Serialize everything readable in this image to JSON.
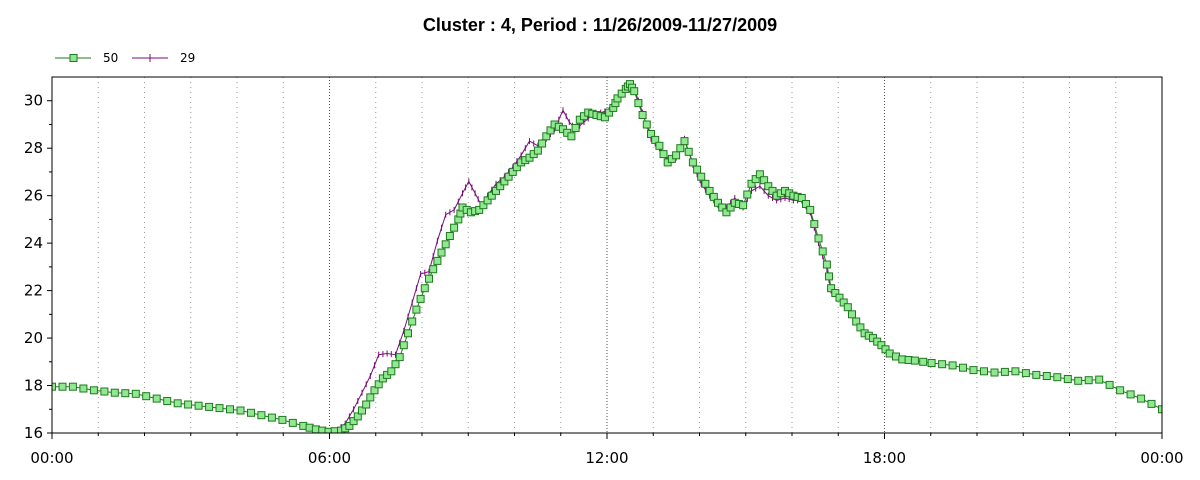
{
  "chart_data": {
    "type": "line",
    "title": "Cluster : 4, Period : 11/26/2009-11/27/2009",
    "xlabel": "",
    "ylabel": "",
    "x_range_hours": [
      0,
      24
    ],
    "ylim": [
      16,
      31
    ],
    "x_tick_labels": [
      "00:00",
      "06:00",
      "12:00",
      "18:00",
      "00:00"
    ],
    "x_tick_hours": [
      0,
      6,
      12,
      18,
      24
    ],
    "y_ticks": [
      16,
      18,
      20,
      22,
      24,
      26,
      28,
      30
    ],
    "legend_position": "top-left",
    "grid": "vertical dotted",
    "series": [
      {
        "name": "50",
        "color": "#1f7a1f",
        "marker_fill": "#90e890",
        "marker": "square",
        "points": [
          [
            0,
            17.95
          ],
          [
            0.5,
            17.95
          ],
          [
            1,
            17.8
          ],
          [
            1.5,
            17.7
          ],
          [
            2,
            17.65
          ],
          [
            2.5,
            17.45
          ],
          [
            3,
            17.25
          ],
          [
            3.5,
            17.15
          ],
          [
            4,
            17.05
          ],
          [
            4.5,
            16.95
          ],
          [
            5,
            16.75
          ],
          [
            5.5,
            16.55
          ],
          [
            6,
            16.3
          ],
          [
            6.3,
            16.15
          ],
          [
            6.6,
            16.05
          ],
          [
            6.9,
            16.1
          ],
          [
            7.1,
            16.3
          ],
          [
            7.3,
            16.7
          ],
          [
            7.5,
            17.2
          ],
          [
            7.7,
            17.8
          ],
          [
            7.9,
            18.3
          ],
          [
            8.1,
            18.6
          ],
          [
            8.3,
            19.2
          ],
          [
            8.5,
            20.2
          ],
          [
            8.7,
            21.2
          ],
          [
            8.9,
            22.1
          ],
          [
            9.1,
            22.9
          ],
          [
            9.3,
            23.6
          ],
          [
            9.5,
            24.3
          ],
          [
            9.7,
            25.0
          ],
          [
            9.8,
            25.5
          ],
          [
            10.0,
            25.3
          ],
          [
            10.2,
            25.4
          ],
          [
            10.4,
            25.8
          ],
          [
            10.6,
            26.2
          ],
          [
            10.8,
            26.6
          ],
          [
            11.0,
            27.0
          ],
          [
            11.2,
            27.4
          ],
          [
            11.4,
            27.6
          ],
          [
            11.6,
            27.9
          ],
          [
            11.8,
            28.5
          ],
          [
            12.0,
            29.0
          ],
          [
            12.2,
            28.8
          ],
          [
            12.4,
            28.5
          ],
          [
            12.6,
            29.2
          ],
          [
            12.8,
            29.5
          ],
          [
            13.0,
            29.4
          ],
          [
            13.2,
            29.3
          ],
          [
            13.4,
            29.7
          ],
          [
            13.5,
            30.1
          ],
          [
            13.7,
            30.5
          ],
          [
            13.8,
            30.7
          ],
          [
            13.9,
            30.4
          ],
          [
            14.1,
            29.4
          ],
          [
            14.3,
            28.6
          ],
          [
            14.5,
            28.1
          ],
          [
            14.7,
            27.4
          ],
          [
            14.9,
            27.7
          ],
          [
            15.1,
            28.3
          ],
          [
            15.3,
            27.4
          ],
          [
            15.5,
            26.8
          ],
          [
            15.7,
            26.2
          ],
          [
            15.9,
            25.7
          ],
          [
            16.1,
            25.3
          ],
          [
            16.3,
            25.7
          ],
          [
            16.5,
            25.6
          ],
          [
            16.7,
            26.5
          ],
          [
            16.9,
            26.9
          ],
          [
            17.1,
            26.4
          ],
          [
            17.3,
            26.0
          ],
          [
            17.5,
            26.2
          ],
          [
            17.7,
            26.0
          ],
          [
            17.9,
            25.9
          ],
          [
            18.1,
            25.4
          ],
          [
            18.3,
            24.2
          ],
          [
            18.5,
            23.1
          ],
          [
            18.6,
            22.1
          ],
          [
            18.8,
            21.7
          ],
          [
            19.0,
            21.3
          ],
          [
            19.2,
            20.7
          ],
          [
            19.4,
            20.2
          ],
          [
            19.6,
            20.0
          ],
          [
            19.8,
            19.7
          ],
          [
            20.0,
            19.35
          ],
          [
            20.3,
            19.1
          ],
          [
            20.6,
            19.05
          ],
          [
            21.0,
            18.95
          ],
          [
            21.5,
            18.85
          ],
          [
            22.0,
            18.65
          ],
          [
            22.5,
            18.55
          ],
          [
            23.0,
            18.6
          ],
          [
            23.5,
            18.45
          ],
          [
            24.0,
            18.35
          ],
          [
            24.5,
            18.2
          ],
          [
            25.0,
            18.25
          ],
          [
            25.5,
            17.8
          ],
          [
            26.0,
            17.45
          ],
          [
            26.5,
            17.0
          ]
        ]
      },
      {
        "name": "29",
        "color": "#7b0c7b",
        "marker": "plus",
        "points": [
          [
            6.8,
            16.1
          ],
          [
            7.0,
            16.4
          ],
          [
            7.2,
            17.0
          ],
          [
            7.4,
            17.7
          ],
          [
            7.6,
            18.4
          ],
          [
            7.8,
            19.3
          ],
          [
            8.0,
            19.35
          ],
          [
            8.2,
            19.3
          ],
          [
            8.4,
            20.3
          ],
          [
            8.6,
            21.5
          ],
          [
            8.8,
            22.7
          ],
          [
            9.0,
            22.8
          ],
          [
            9.2,
            24.1
          ],
          [
            9.4,
            25.2
          ],
          [
            9.6,
            25.4
          ],
          [
            9.8,
            26.1
          ],
          [
            9.95,
            26.6
          ],
          [
            10.1,
            26.1
          ],
          [
            10.25,
            25.6
          ],
          [
            10.4,
            26.0
          ],
          [
            10.6,
            26.5
          ],
          [
            10.8,
            26.8
          ],
          [
            11.0,
            27.2
          ],
          [
            11.2,
            27.7
          ],
          [
            11.4,
            28.3
          ],
          [
            11.6,
            28.1
          ],
          [
            11.8,
            28.4
          ],
          [
            12.0,
            28.8
          ],
          [
            12.2,
            29.6
          ],
          [
            12.35,
            29.1
          ],
          [
            12.5,
            28.8
          ],
          [
            12.7,
            29.1
          ],
          [
            12.9,
            29.4
          ],
          [
            13.1,
            29.5
          ],
          [
            13.3,
            29.6
          ],
          [
            13.5,
            30.0
          ],
          [
            13.7,
            30.6
          ],
          [
            13.9,
            30.5
          ],
          [
            14.1,
            29.5
          ],
          [
            14.3,
            28.4
          ],
          [
            14.5,
            28.0
          ],
          [
            14.7,
            27.5
          ],
          [
            14.9,
            27.6
          ],
          [
            15.1,
            28.4
          ],
          [
            15.3,
            27.3
          ],
          [
            15.5,
            26.5
          ],
          [
            15.7,
            26.0
          ],
          [
            15.9,
            25.6
          ],
          [
            16.1,
            25.5
          ],
          [
            16.3,
            25.9
          ],
          [
            16.5,
            25.5
          ],
          [
            16.7,
            26.2
          ],
          [
            16.9,
            26.4
          ],
          [
            17.1,
            26.0
          ],
          [
            17.3,
            25.8
          ],
          [
            17.5,
            25.9
          ],
          [
            17.7,
            25.8
          ],
          [
            17.9,
            25.8
          ],
          [
            18.1,
            25.3
          ],
          [
            18.3,
            24.0
          ],
          [
            18.5,
            22.9
          ],
          [
            18.6,
            22.0
          ]
        ]
      }
    ]
  }
}
